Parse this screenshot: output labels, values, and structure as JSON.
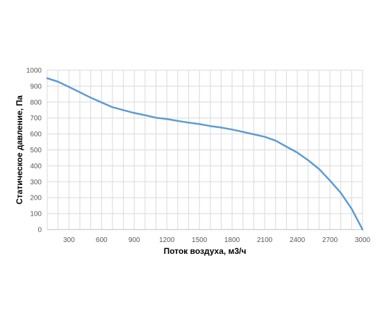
{
  "chart_data": {
    "type": "line",
    "xlabel": "Поток воздуха, м3/ч",
    "ylabel": "Статическое давление, Па",
    "xlim": [
      100,
      3000
    ],
    "ylim": [
      0,
      1000
    ],
    "x_ticks": [
      300,
      600,
      900,
      1200,
      1500,
      1800,
      2100,
      2400,
      2700,
      3000
    ],
    "y_ticks": [
      0,
      100,
      200,
      300,
      400,
      500,
      600,
      700,
      800,
      900,
      1000
    ],
    "x_grid_step": 100,
    "y_grid_step": 100,
    "grid": true,
    "legend": "none",
    "series": [
      {
        "color": "#5b9bd5",
        "x": [
          100,
          200,
          300,
          400,
          500,
          600,
          700,
          800,
          900,
          1000,
          1100,
          1200,
          1300,
          1400,
          1500,
          1600,
          1700,
          1800,
          1900,
          2000,
          2100,
          2200,
          2300,
          2400,
          2500,
          2600,
          2700,
          2800,
          2900,
          3000
        ],
        "y": [
          950,
          928,
          895,
          862,
          828,
          798,
          768,
          750,
          732,
          718,
          702,
          694,
          682,
          671,
          662,
          650,
          640,
          628,
          613,
          598,
          582,
          558,
          520,
          483,
          435,
          380,
          308,
          230,
          130,
          0
        ]
      }
    ]
  }
}
